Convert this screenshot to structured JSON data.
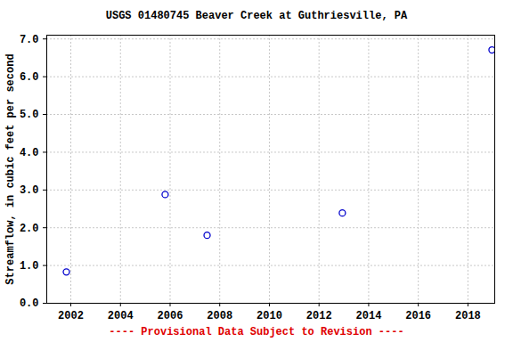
{
  "chart_data": {
    "type": "scatter",
    "title": "USGS 01480745 Beaver Creek at Guthriesville, PA",
    "y_label": "Streamflow, in cubic feet per second",
    "annotations": [
      "---- Provisional Data Subject to Revision ----"
    ],
    "x": [
      2001.82,
      2005.8,
      2007.49,
      2012.94,
      2018.97
    ],
    "values": [
      0.83,
      2.88,
      1.8,
      2.39,
      6.71
    ],
    "color": "#0000cc",
    "marker": "open_circle",
    "xlim": [
      2001.03,
      2019.08
    ],
    "xticks": [
      2002,
      2004,
      2006,
      2008,
      2010,
      2012,
      2014,
      2016,
      2018
    ],
    "ylim": [
      0,
      7.1
    ],
    "yticks": [
      {
        "value": 0,
        "label": "0.0"
      },
      {
        "value": 1,
        "label": "1.0"
      },
      {
        "value": 2,
        "label": "2.0"
      },
      {
        "value": 3,
        "label": "3.0"
      },
      {
        "value": 4,
        "label": "4.0"
      },
      {
        "value": 5,
        "label": "5.0"
      },
      {
        "value": 6,
        "label": "6.0"
      },
      {
        "value": 7,
        "label": "7.0"
      }
    ],
    "grid": true
  }
}
